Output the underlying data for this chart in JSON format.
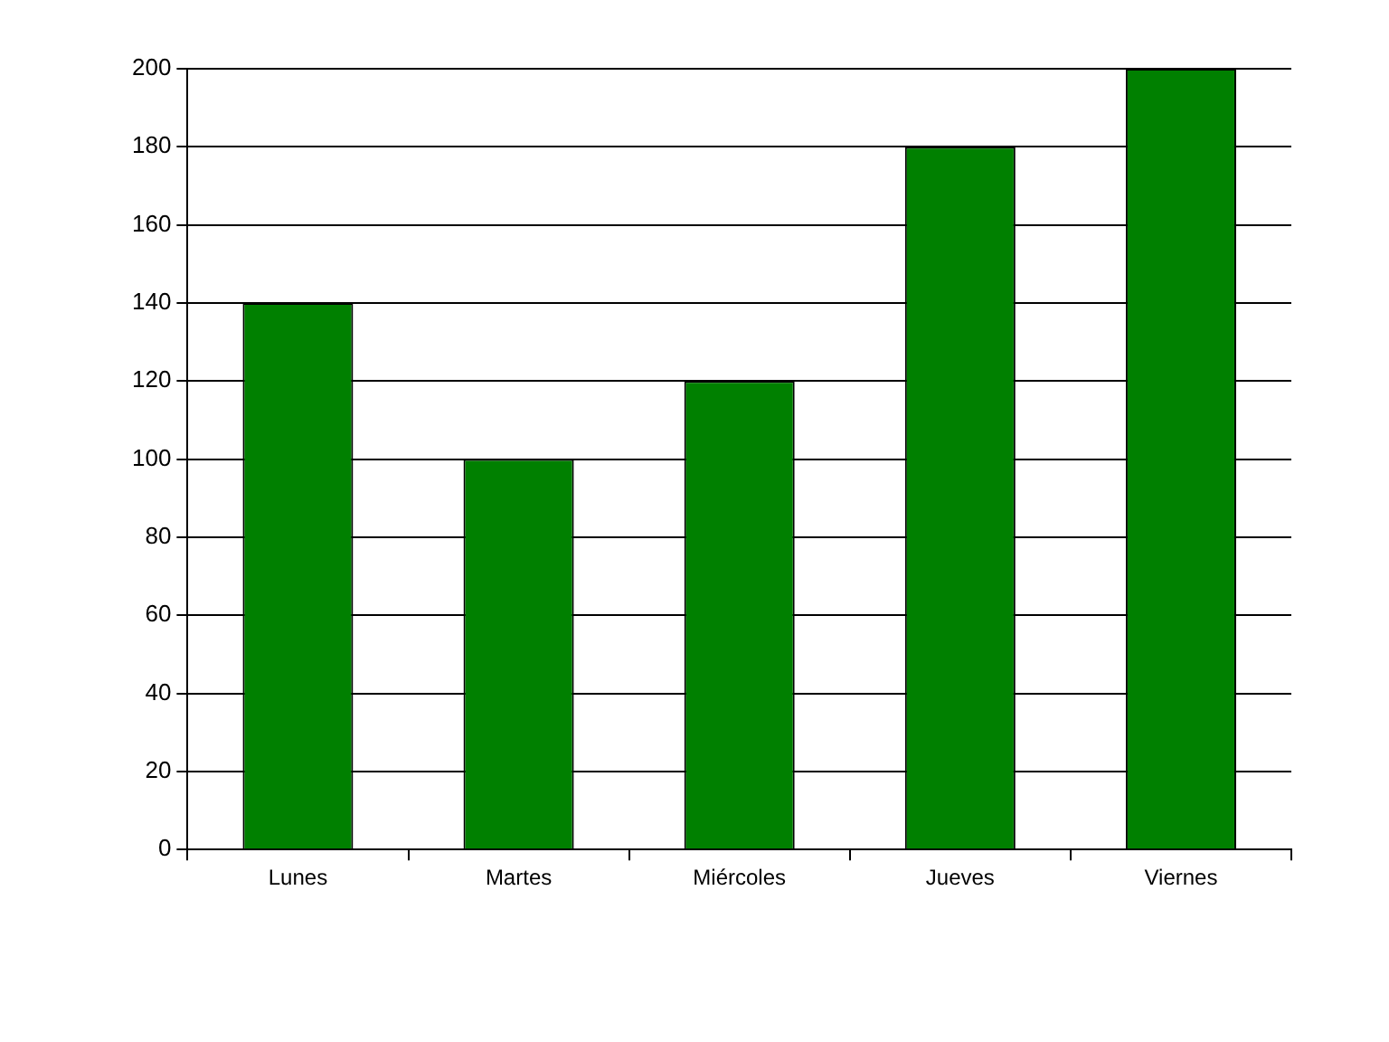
{
  "chart_data": {
    "type": "bar",
    "categories": [
      "Lunes",
      "Martes",
      "Miércoles",
      "Jueves",
      "Viernes"
    ],
    "values": [
      140,
      100,
      120,
      180,
      200
    ],
    "color": "#008000",
    "ylim": [
      0,
      200
    ],
    "yticks": [
      0,
      20,
      40,
      60,
      80,
      100,
      120,
      140,
      160,
      180,
      200
    ],
    "grid": "y"
  }
}
